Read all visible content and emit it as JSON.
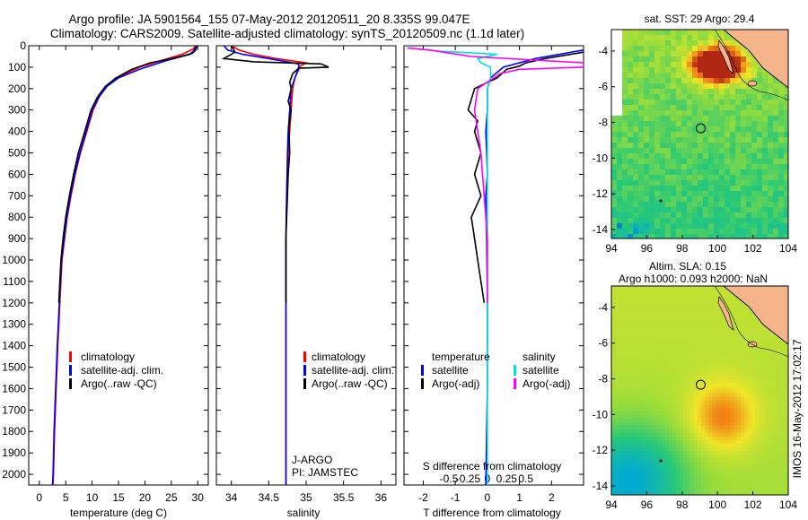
{
  "header": {
    "title_line1": "Argo profile: JA 5901564_155 07-May-2012 20120511_20 8.335S 99.047E",
    "title_line2": "Climatology: CARS2009. Satellite-adjusted climatology: synTS_20120509.nc (1.1d later)"
  },
  "colors": {
    "climatology": "#ff0000",
    "satellite": "#0000ff",
    "argo": "#000000",
    "argo_salinity_diff": "#ff00ff",
    "satellite_salinity_diff": "#00e0e0",
    "land": "#f6b48a",
    "coast": "#000000"
  },
  "chart_data": [
    {
      "type": "line",
      "id": "temperature",
      "xlabel": "temperature (deg C)",
      "ylabel": "",
      "xlim": [
        -2,
        32
      ],
      "ylim": [
        2050,
        0
      ],
      "x_ticks": [
        "0",
        "5",
        "10",
        "15",
        "20",
        "25",
        "30"
      ],
      "x_tick_values": [
        0,
        5,
        10,
        15,
        20,
        25,
        30
      ],
      "y_ticks": [
        "0",
        "100",
        "200",
        "300",
        "400",
        "500",
        "600",
        "700",
        "800",
        "900",
        "1000",
        "1100",
        "1200",
        "1300",
        "1400",
        "1500",
        "1600",
        "1700",
        "1800",
        "1900",
        "2000"
      ],
      "y_tick_values": [
        0,
        100,
        200,
        300,
        400,
        500,
        600,
        700,
        800,
        900,
        1000,
        1100,
        1200,
        1300,
        1400,
        1500,
        1600,
        1700,
        1800,
        1900,
        2000
      ],
      "legend": [
        "climatology",
        "satellite-adj. clim.",
        "Argo(..raw -QC)"
      ],
      "legend_position": "lower-right",
      "series": [
        {
          "name": "climatology",
          "color_key": "climatology",
          "points": [
            [
              29.5,
              0
            ],
            [
              29.2,
              15
            ],
            [
              27,
              40
            ],
            [
              23,
              70
            ],
            [
              19,
              100
            ],
            [
              15.5,
              140
            ],
            [
              13,
              180
            ],
            [
              11.5,
              230
            ],
            [
              10.2,
              300
            ],
            [
              9,
              400
            ],
            [
              7.8,
              500
            ],
            [
              6.8,
              600
            ],
            [
              6,
              700
            ],
            [
              5.3,
              800
            ],
            [
              4.8,
              900
            ],
            [
              4.3,
              1000
            ],
            [
              3.9,
              1200
            ],
            [
              3.5,
              1400
            ],
            [
              3.2,
              1600
            ],
            [
              2.9,
              1800
            ],
            [
              2.7,
              2000
            ],
            [
              2.6,
              2050
            ]
          ]
        },
        {
          "name": "satellite-adj. clim.",
          "color_key": "satellite",
          "points": [
            [
              29.6,
              0
            ],
            [
              29.4,
              20
            ],
            [
              28.5,
              40
            ],
            [
              24,
              70
            ],
            [
              19,
              110
            ],
            [
              15,
              150
            ],
            [
              12.8,
              190
            ],
            [
              11.3,
              240
            ],
            [
              10,
              300
            ],
            [
              8.9,
              400
            ],
            [
              7.7,
              500
            ],
            [
              6.7,
              600
            ],
            [
              5.9,
              700
            ],
            [
              5.2,
              800
            ],
            [
              4.7,
              900
            ],
            [
              4.2,
              1000
            ],
            [
              3.8,
              1200
            ],
            [
              3.4,
              1400
            ],
            [
              3.1,
              1600
            ],
            [
              2.8,
              1800
            ],
            [
              2.6,
              2000
            ],
            [
              2.5,
              2050
            ]
          ]
        },
        {
          "name": "Argo(..raw -QC)",
          "color_key": "argo",
          "points": [
            [
              29.8,
              0
            ],
            [
              29.6,
              20
            ],
            [
              29,
              35
            ],
            [
              26,
              55
            ],
            [
              21,
              80
            ],
            [
              17.5,
              110
            ],
            [
              14.5,
              150
            ],
            [
              12.5,
              190
            ],
            [
              11,
              240
            ],
            [
              9.8,
              300
            ],
            [
              8.6,
              400
            ],
            [
              7.4,
              500
            ],
            [
              6.5,
              600
            ],
            [
              5.7,
              700
            ],
            [
              5,
              800
            ],
            [
              4.5,
              900
            ],
            [
              4.1,
              1000
            ],
            [
              3.7,
              1200
            ]
          ]
        }
      ]
    },
    {
      "type": "line",
      "id": "salinity",
      "xlabel": "salinity",
      "xlim": [
        33.8,
        36.2
      ],
      "ylim": [
        2050,
        0
      ],
      "x_ticks": [
        "34",
        "34.5",
        "35",
        "35.5",
        "36"
      ],
      "x_tick_values": [
        34,
        34.5,
        35,
        35.5,
        36
      ],
      "legend": [
        "climatology",
        "satellite-adj. clim.",
        "Argo(..raw -QC)"
      ],
      "legend_position": "lower-right",
      "annotations": [
        "J-ARGO",
        "PI: JAMSTEC"
      ],
      "series": [
        {
          "name": "climatology",
          "color_key": "climatology",
          "points": [
            [
              34.0,
              0
            ],
            [
              34.1,
              20
            ],
            [
              34.3,
              40
            ],
            [
              34.6,
              60
            ],
            [
              35.0,
              80
            ],
            [
              34.9,
              100
            ],
            [
              34.85,
              150
            ],
            [
              34.82,
              200
            ],
            [
              34.8,
              300
            ],
            [
              34.78,
              400
            ],
            [
              34.76,
              500
            ],
            [
              34.74,
              700
            ],
            [
              34.73,
              900
            ],
            [
              34.73,
              1200
            ],
            [
              34.73,
              1600
            ],
            [
              34.73,
              2050
            ]
          ]
        },
        {
          "name": "satellite-adj. clim.",
          "color_key": "satellite",
          "points": [
            [
              33.9,
              0
            ],
            [
              33.95,
              20
            ],
            [
              34.15,
              40
            ],
            [
              34.5,
              60
            ],
            [
              34.9,
              85
            ],
            [
              34.9,
              110
            ],
            [
              34.85,
              150
            ],
            [
              34.8,
              200
            ],
            [
              34.78,
              300
            ],
            [
              34.76,
              400
            ],
            [
              34.75,
              500
            ],
            [
              34.74,
              700
            ],
            [
              34.73,
              900
            ],
            [
              34.73,
              1200
            ],
            [
              34.73,
              1600
            ],
            [
              34.73,
              2050
            ]
          ]
        },
        {
          "name": "Argo(..raw -QC)",
          "color_key": "argo",
          "points": [
            [
              34.0,
              0
            ],
            [
              34.05,
              30
            ],
            [
              33.9,
              60
            ],
            [
              34.3,
              75
            ],
            [
              35.2,
              85
            ],
            [
              35.3,
              100
            ],
            [
              34.9,
              105
            ],
            [
              34.82,
              130
            ],
            [
              34.78,
              170
            ],
            [
              34.8,
              200
            ],
            [
              34.76,
              260
            ],
            [
              34.8,
              300
            ],
            [
              34.77,
              380
            ],
            [
              34.78,
              500
            ],
            [
              34.76,
              600
            ],
            [
              34.75,
              700
            ],
            [
              34.74,
              800
            ],
            [
              34.73,
              900
            ],
            [
              34.73,
              1000
            ],
            [
              34.73,
              1100
            ],
            [
              34.73,
              1200
            ]
          ]
        }
      ]
    },
    {
      "type": "line",
      "id": "difference",
      "xlabel": "T difference from climatology",
      "xlabel_top": "S difference from climatology",
      "xlim": [
        -2.6,
        3
      ],
      "ylim": [
        2050,
        0
      ],
      "x_ticks": [
        "-2",
        "-1",
        "0",
        "1",
        "2"
      ],
      "x_tick_values": [
        -2,
        -1,
        0,
        1,
        2
      ],
      "s_ticks": [
        "-0.5",
        "-0.25",
        "0",
        "0.25",
        "0.5"
      ],
      "s_tick_values": [
        -1.2,
        -0.6,
        0,
        0.6,
        1.2
      ],
      "legend_headers": [
        "temperature",
        "salinity"
      ],
      "legend": [
        "satellite",
        "Argo(-adj)",
        "satellite",
        "Argo(-adj)"
      ],
      "legend_position": "lower-center",
      "series": [
        {
          "name": "T satellite",
          "color_key": "satellite",
          "points": [
            [
              3,
              20
            ],
            [
              1.5,
              60
            ],
            [
              0.5,
              100
            ],
            [
              0.1,
              150
            ],
            [
              0,
              200
            ],
            [
              0,
              300
            ],
            [
              -0.05,
              400
            ],
            [
              -0.02,
              500
            ],
            [
              0,
              600
            ],
            [
              -0.05,
              700
            ],
            [
              -0.02,
              900
            ],
            [
              0,
              1200
            ],
            [
              0,
              1600
            ],
            [
              -0.05,
              2050
            ]
          ]
        },
        {
          "name": "T Argo(-adj)",
          "color_key": "argo",
          "points": [
            [
              3,
              30
            ],
            [
              1.8,
              60
            ],
            [
              1.2,
              80
            ],
            [
              1,
              95
            ],
            [
              0.6,
              110
            ],
            [
              0.3,
              150
            ],
            [
              -0.4,
              200
            ],
            [
              -0.5,
              250
            ],
            [
              -0.6,
              300
            ],
            [
              -0.3,
              350
            ],
            [
              -0.4,
              400
            ],
            [
              -0.2,
              500
            ],
            [
              -0.4,
              600
            ],
            [
              -0.2,
              700
            ],
            [
              -0.5,
              800
            ],
            [
              -0.4,
              900
            ],
            [
              -0.3,
              1000
            ],
            [
              -0.2,
              1100
            ],
            [
              -0.1,
              1200
            ]
          ]
        },
        {
          "name": "S satellite",
          "color_key": "satellite_salinity_diff",
          "points": [
            [
              -2.2,
              15
            ],
            [
              -1.5,
              25
            ],
            [
              0.3,
              40
            ],
            [
              -0.3,
              60
            ],
            [
              -0.2,
              80
            ],
            [
              0.1,
              100
            ],
            [
              0.1,
              150
            ],
            [
              0,
              200
            ],
            [
              0,
              300
            ],
            [
              0,
              500
            ],
            [
              0,
              800
            ],
            [
              0,
              1200
            ],
            [
              0,
              2050
            ]
          ]
        },
        {
          "name": "S Argo(-adj)",
          "color_key": "argo_salinity_diff",
          "points": [
            [
              -2.5,
              10
            ],
            [
              -1.8,
              20
            ],
            [
              -0.5,
              50
            ],
            [
              3,
              80
            ],
            [
              3,
              100
            ],
            [
              1,
              110
            ],
            [
              0.4,
              130
            ],
            [
              -0.3,
              200
            ],
            [
              -0.4,
              300
            ],
            [
              -0.3,
              400
            ],
            [
              -0.2,
              500
            ],
            [
              -0.1,
              700
            ],
            [
              0,
              900
            ],
            [
              0,
              1200
            ]
          ]
        }
      ]
    },
    {
      "type": "heatmap",
      "id": "sst_map",
      "title": "sat. SST: 29 Argo: 29.4",
      "xlim": [
        94,
        104
      ],
      "ylim": [
        -14.5,
        -2.8
      ],
      "x_ticks": [
        "94",
        "96",
        "98",
        "100",
        "102",
        "104"
      ],
      "x_tick_values": [
        94,
        96,
        98,
        100,
        102,
        104
      ],
      "y_ticks": [
        "-4",
        "-6",
        "-8",
        "-10",
        "-12",
        "-14"
      ],
      "y_tick_values": [
        -4,
        -6,
        -8,
        -10,
        -12,
        -14
      ],
      "marker": {
        "lon": 99.05,
        "lat": -8.33
      }
    },
    {
      "type": "heatmap",
      "id": "sla_map",
      "title": "Altim. SLA: 0.15",
      "subtitle": "Argo h1000: 0.093 h2000: NaN",
      "xlim": [
        94,
        104
      ],
      "ylim": [
        -14.5,
        -2.8
      ],
      "x_ticks": [
        "94",
        "96",
        "98",
        "100",
        "102",
        "104"
      ],
      "x_tick_values": [
        94,
        96,
        98,
        100,
        102,
        104
      ],
      "y_ticks": [
        "-4",
        "-6",
        "-8",
        "-10",
        "-12",
        "-14"
      ],
      "y_tick_values": [
        -4,
        -6,
        -8,
        -10,
        -12,
        -14
      ],
      "marker": {
        "lon": 99.05,
        "lat": -8.33
      }
    }
  ],
  "footer": {
    "credit": "IMOS 16-May-2012 17:02:17"
  }
}
